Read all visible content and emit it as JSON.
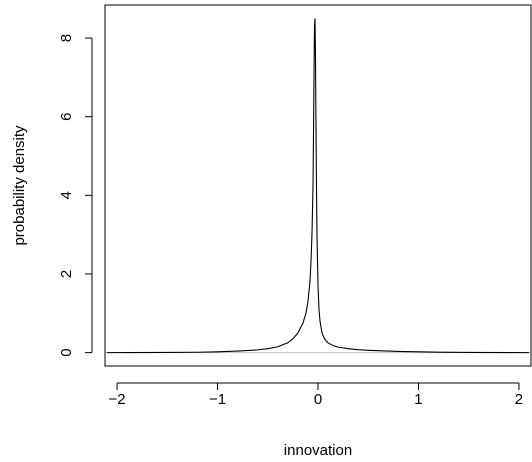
{
  "chart_data": {
    "type": "line",
    "title": "",
    "xlabel": "innovation",
    "ylabel": "probability density",
    "xlim": [
      -2.12,
      2.12
    ],
    "ylim": [
      -0.34,
      8.84
    ],
    "x_ticks": [
      -2,
      -1,
      0,
      1,
      2
    ],
    "x_tick_labels": [
      "−2",
      "−1",
      "0",
      "1",
      "2"
    ],
    "y_ticks": [
      0,
      2,
      4,
      6,
      8
    ],
    "y_tick_labels": [
      "0",
      "2",
      "4",
      "6",
      "8"
    ],
    "grid": false,
    "legend": "none",
    "reference_line": {
      "y": 0,
      "color": "#bebebe"
    },
    "line_color": "#000000",
    "series": [
      {
        "x": [
          -2.1,
          -1.5,
          -1.2,
          -1.0,
          -0.8,
          -0.6,
          -0.5,
          -0.4,
          -0.3,
          -0.25,
          -0.2,
          -0.15,
          -0.12,
          -0.1,
          -0.08,
          -0.07,
          -0.06,
          -0.05,
          -0.045,
          -0.04,
          -0.035,
          -0.03,
          -0.025,
          -0.02,
          -0.015,
          -0.01,
          0.0,
          0.01,
          0.02,
          0.04,
          0.06,
          0.08,
          0.1,
          0.15,
          0.2,
          0.3,
          0.4,
          0.5,
          0.6,
          0.8,
          1.0,
          1.2,
          1.5,
          2.1
        ],
        "y": [
          0.0,
          0.005,
          0.01,
          0.02,
          0.04,
          0.07,
          0.1,
          0.15,
          0.25,
          0.35,
          0.5,
          0.75,
          1.0,
          1.3,
          1.8,
          2.3,
          3.0,
          4.2,
          5.5,
          7.0,
          8.3,
          8.5,
          7.5,
          5.8,
          4.2,
          3.0,
          1.7,
          1.1,
          0.8,
          0.5,
          0.38,
          0.3,
          0.25,
          0.18,
          0.14,
          0.1,
          0.075,
          0.06,
          0.05,
          0.03,
          0.02,
          0.012,
          0.006,
          0.0
        ]
      }
    ]
  }
}
